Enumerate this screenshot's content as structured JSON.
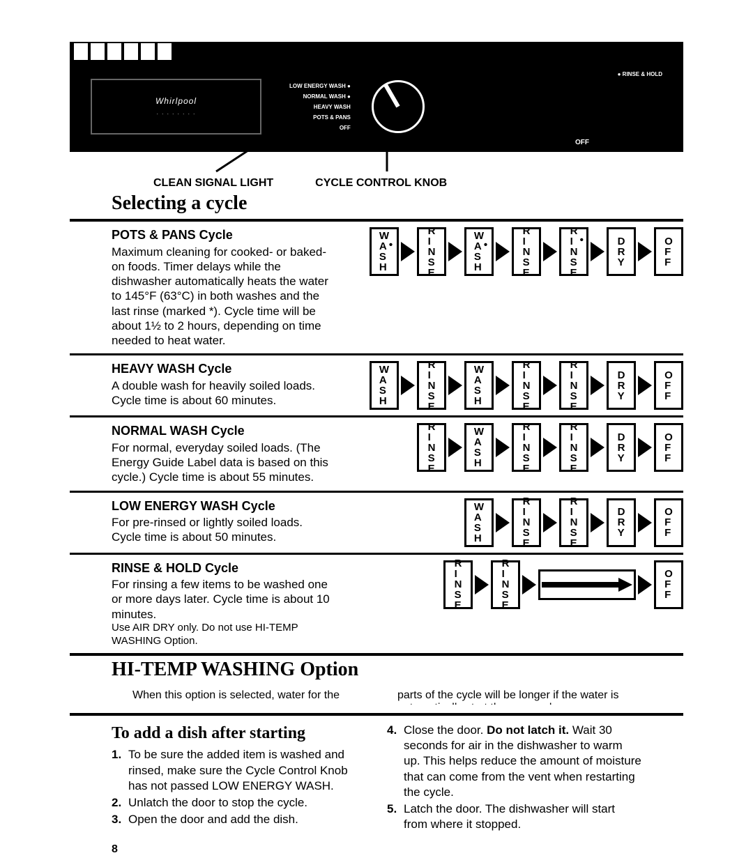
{
  "panel": {
    "brand": "Whirlpool",
    "brand_sub": "· · · · · · · ·",
    "left_labels": [
      "LOW ENERGY WASH  ●",
      "NORMAL WASH  ●",
      "HEAVY WASH  ",
      "POTS & PANS  ",
      "OFF  "
    ],
    "right_label": "●  RINSE & HOLD",
    "off": "OFF",
    "clean_signal": "CLEAN SIGNAL LIGHT",
    "cycle_knob": "CYCLE CONTROL KNOB"
  },
  "section_title": "Selecting a cycle",
  "stage_labels": {
    "wash_star": "W•ASH",
    "wash": "WASH",
    "rinse": "RINSE",
    "rinse_star": "R•INSE",
    "dry": "DRY",
    "off": "OFF"
  },
  "cycles": [
    {
      "title": "POTS & PANS Cycle",
      "body": "Maximum cleaning for cooked- or baked-on foods. Timer delays while the dishwasher automatically heats the water to 145°F (63°C) in both washes and the last rinse (marked *). Cycle time will be about 1½ to 2 hours, depending on time needed to heat water.",
      "flow": [
        "wash_star",
        "rinse",
        "wash_star",
        "rinse",
        "rinse_star",
        "dry",
        "off"
      ]
    },
    {
      "title": "HEAVY WASH Cycle",
      "body": "A double wash for heavily soiled loads. Cycle time is about 60 minutes.",
      "flow": [
        "wash",
        "rinse",
        "wash",
        "rinse",
        "rinse",
        "dry",
        "off"
      ]
    },
    {
      "title": "NORMAL WASH Cycle",
      "body": "For normal, everyday soiled loads. (The Energy Guide Label data is based on this cycle.) Cycle time is about 55 minutes.",
      "flow": [
        "rinse",
        "wash",
        "rinse",
        "rinse",
        "dry",
        "off"
      ]
    },
    {
      "title": "LOW ENERGY WASH Cycle",
      "body": "For pre-rinsed or lightly soiled loads. Cycle time is about 50 minutes.",
      "flow": [
        "wash",
        "rinse",
        "rinse",
        "dry",
        "off"
      ]
    },
    {
      "title": "RINSE & HOLD Cycle",
      "body": "For rinsing a few items to be washed one or more days later. Cycle time is about 10 minutes.",
      "note": "Use AIR DRY only. Do not use HI-TEMP WASHING Option.",
      "flow": [
        "rinse",
        "rinse",
        "longarrow",
        "off"
      ]
    }
  ],
  "hitemp": {
    "title": "HI-TEMP WASHING Option",
    "left": "When this option is selected, water for the",
    "right": "parts of the cycle will be longer if the water is automatically start the new cycle."
  },
  "add_dish": {
    "title": "To add a dish after starting",
    "left": [
      "To be sure the added item is washed and rinsed, make sure the Cycle Control Knob has not passed LOW ENERGY WASH.",
      "Unlatch the door to stop the cycle.",
      "Open the door and add the dish."
    ],
    "right": [
      "Close the door. <b>Do not latch it.</b> Wait 30 seconds for air in the dishwasher to warm up. This helps reduce the amount of moisture that can come from the vent when restarting the cycle.",
      "Latch the door. The dishwasher will start from where it stopped."
    ]
  },
  "page": "8"
}
